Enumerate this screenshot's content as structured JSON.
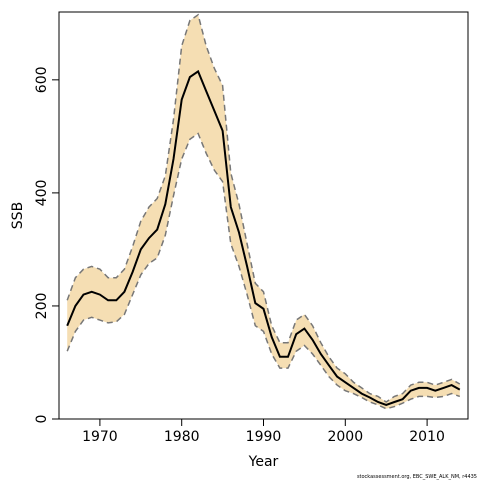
{
  "chart_data": {
    "type": "area",
    "title": "",
    "xlabel": "Year",
    "ylabel": "SSB",
    "credit": "stockassessment.org, EBC_SWE_ALK_NM, r4435",
    "xlim": [
      1965,
      2015
    ],
    "ylim": [
      0,
      720
    ],
    "x_ticks": [
      1970,
      1980,
      1990,
      2000,
      2010
    ],
    "y_ticks": [
      0,
      200,
      400,
      600
    ],
    "grid": false,
    "legend": "none",
    "colors": {
      "band": "#f5deb3",
      "estimate": "#000000",
      "bounds": "#777777"
    },
    "x": [
      1966,
      1967,
      1968,
      1969,
      1970,
      1971,
      1972,
      1973,
      1974,
      1975,
      1976,
      1977,
      1978,
      1979,
      1980,
      1981,
      1982,
      1983,
      1984,
      1985,
      1986,
      1987,
      1988,
      1989,
      1990,
      1991,
      1992,
      1993,
      1994,
      1995,
      1996,
      1997,
      1998,
      1999,
      2000,
      2001,
      2002,
      2003,
      2004,
      2005,
      2006,
      2007,
      2008,
      2009,
      2010,
      2011,
      2012,
      2013,
      2014
    ],
    "series": [
      {
        "name": "estimate",
        "values": [
          165,
          200,
          220,
          225,
          220,
          210,
          210,
          225,
          260,
          300,
          320,
          335,
          380,
          460,
          565,
          605,
          615,
          580,
          545,
          510,
          375,
          330,
          270,
          205,
          195,
          145,
          110,
          110,
          150,
          160,
          140,
          115,
          95,
          75,
          65,
          55,
          45,
          38,
          30,
          25,
          30,
          35,
          50,
          55,
          55,
          50,
          55,
          60,
          52
        ]
      },
      {
        "name": "upper",
        "values": [
          210,
          250,
          265,
          270,
          265,
          250,
          250,
          265,
          305,
          350,
          375,
          390,
          430,
          530,
          660,
          705,
          715,
          660,
          620,
          590,
          435,
          380,
          310,
          240,
          225,
          165,
          135,
          135,
          175,
          185,
          165,
          135,
          110,
          90,
          80,
          65,
          55,
          45,
          40,
          30,
          40,
          45,
          60,
          65,
          65,
          60,
          65,
          70,
          62
        ]
      },
      {
        "name": "lower",
        "values": [
          120,
          155,
          175,
          180,
          175,
          170,
          172,
          185,
          220,
          255,
          275,
          285,
          325,
          395,
          460,
          495,
          505,
          470,
          440,
          420,
          310,
          270,
          220,
          165,
          155,
          115,
          90,
          90,
          120,
          130,
          115,
          95,
          75,
          60,
          50,
          45,
          38,
          30,
          25,
          18,
          22,
          28,
          35,
          40,
          40,
          38,
          40,
          45,
          40
        ]
      }
    ]
  }
}
